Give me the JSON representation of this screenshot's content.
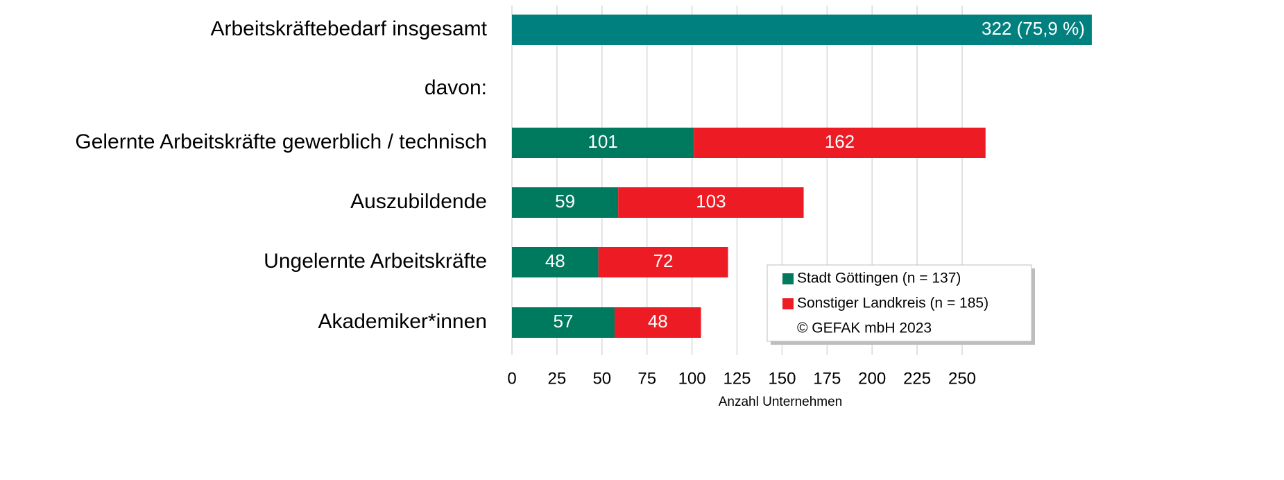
{
  "chart_data": {
    "type": "stacked-barh",
    "categories": [
      "Arbeitskräftebedarf insgesamt",
      "davon:",
      "Gelernte Arbeitskräfte gewerblich / technisch",
      "Auszubildende",
      "Ungelernte Arbeitskräfte",
      "Akademiker*innen"
    ],
    "total": {
      "values": [
        322,
        null,
        null,
        null,
        null,
        null
      ],
      "value_labels": [
        "322 (75,9 %)",
        null,
        null,
        null,
        null,
        null
      ],
      "color": "#00807f"
    },
    "series": [
      {
        "name": "Stadt Göttingen (n = 137)",
        "color": "#007a5e",
        "values": [
          null,
          null,
          101,
          59,
          48,
          57
        ]
      },
      {
        "name": "Sonstiger Landkreis (n = 185)",
        "color": "#ed1c24",
        "values": [
          null,
          null,
          162,
          103,
          72,
          48
        ]
      }
    ],
    "source": "© GEFAK mbH 2023",
    "xlabel": "Anzahl Unternehmen",
    "xlim": [
      0,
      300
    ],
    "xticks": [
      0,
      25,
      50,
      75,
      100,
      125,
      150,
      175,
      200,
      225,
      250
    ],
    "grid": true,
    "legend": "lower right"
  }
}
